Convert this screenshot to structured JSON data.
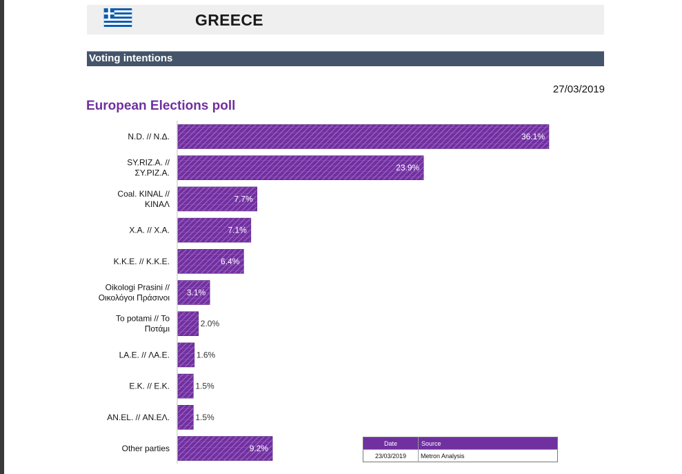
{
  "header": {
    "country": "GREECE",
    "flag": "greece-flag"
  },
  "section": {
    "title": "Voting intentions"
  },
  "date": "27/03/2019",
  "poll_title": "European Elections poll",
  "colors": {
    "bar": "#7030a0",
    "section_bar": "#44546a",
    "header_bg": "#efefef",
    "flag_blue": "#0d5eaf"
  },
  "chart_data": {
    "type": "bar",
    "orientation": "horizontal",
    "title": "European Elections poll",
    "categories": [
      [
        "N.D. // Ν.Δ."
      ],
      [
        "SY.RIZ.A. //",
        "ΣΥ.ΡΙΖ.Α."
      ],
      [
        "Coal. KINAL //",
        "ΚΙΝΑΛ"
      ],
      [
        "X.A. // Χ.Α."
      ],
      [
        "K.K.E. // Κ.Κ.Ε."
      ],
      [
        "Oikologi Prasini //",
        "Οικολόγοι Πράσινοι"
      ],
      [
        "To potami // Το",
        "Ποτάμι"
      ],
      [
        "LA.E. // ΛΑ.Ε."
      ],
      [
        "E.K. // Ε.Κ."
      ],
      [
        "AN.EL. // ΑΝ.ΕΛ."
      ],
      [
        "Other parties"
      ]
    ],
    "values": [
      36.1,
      23.9,
      7.7,
      7.1,
      6.4,
      3.1,
      2.0,
      1.6,
      1.5,
      1.5,
      9.2
    ],
    "labels": [
      "36.1%",
      "23.9%",
      "7.7%",
      "7.1%",
      "6.4%",
      "3.1%",
      "2.0%",
      "1.6%",
      "1.5%",
      "1.5%",
      "9.2%"
    ],
    "xlim": [
      0,
      50
    ]
  },
  "source_table": {
    "headers": [
      "Date",
      "Source"
    ],
    "rows": [
      [
        "23/03/2019",
        "Metron Analysis"
      ]
    ]
  }
}
